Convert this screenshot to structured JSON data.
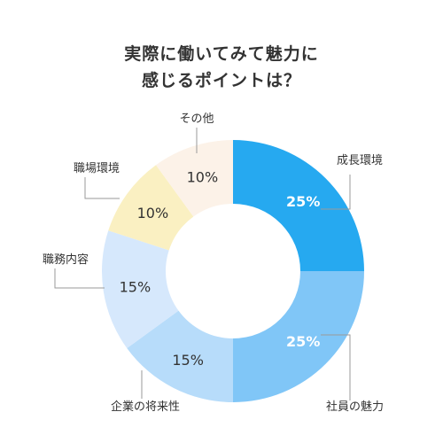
{
  "chart_data": {
    "type": "pie",
    "title": [
      "実際に働いてみて魅力に",
      "感じるポイントは？"
    ],
    "categories": [
      "成長環境",
      "社員の魅力",
      "企業の将来性",
      "職務内容",
      "職場環境",
      "その他"
    ],
    "values": [
      25,
      25,
      15,
      15,
      10,
      10
    ],
    "value_labels": [
      "25%",
      "25%",
      "15%",
      "15%",
      "10%",
      "10%"
    ],
    "colors": [
      "#26a9f0",
      "#80c6f7",
      "#b7dcfa",
      "#d6e8fc",
      "#faf0c2",
      "#fcf2e8"
    ],
    "label_colors": [
      "light",
      "light",
      "dark",
      "dark",
      "dark",
      "dark"
    ],
    "donut": true,
    "legend": "none"
  }
}
